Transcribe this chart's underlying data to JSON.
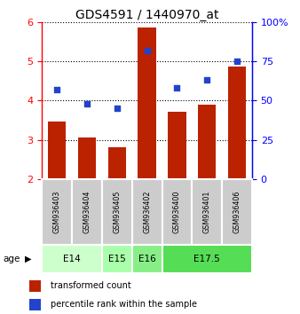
{
  "title": "GDS4591 / 1440970_at",
  "samples": [
    "GSM936403",
    "GSM936404",
    "GSM936405",
    "GSM936402",
    "GSM936400",
    "GSM936401",
    "GSM936406"
  ],
  "bar_values": [
    3.47,
    3.05,
    2.8,
    5.87,
    3.72,
    3.9,
    4.87
  ],
  "percentile_values": [
    57,
    48,
    45,
    82,
    58,
    63,
    75
  ],
  "bar_color": "#bb2200",
  "dot_color": "#2244cc",
  "ylim_left": [
    2,
    6
  ],
  "ylim_right": [
    0,
    100
  ],
  "yticks_left": [
    2,
    3,
    4,
    5,
    6
  ],
  "yticks_right": [
    0,
    25,
    50,
    75,
    100
  ],
  "ytick_labels_right": [
    "0",
    "25",
    "50",
    "75",
    "100%"
  ],
  "age_groups": [
    {
      "label": "E14",
      "indices": [
        0,
        1
      ],
      "color": "#ccffcc"
    },
    {
      "label": "E15",
      "indices": [
        2
      ],
      "color": "#aaffaa"
    },
    {
      "label": "E16",
      "indices": [
        3
      ],
      "color": "#88ee88"
    },
    {
      "label": "E17.5",
      "indices": [
        4,
        5,
        6
      ],
      "color": "#55dd55"
    }
  ],
  "age_label": "age",
  "legend_bar_label": "transformed count",
  "legend_dot_label": "percentile rank within the sample",
  "bar_width": 0.6,
  "sample_box_color": "#cccccc",
  "title_fontsize": 10,
  "tick_fontsize": 8,
  "legend_fontsize": 7
}
